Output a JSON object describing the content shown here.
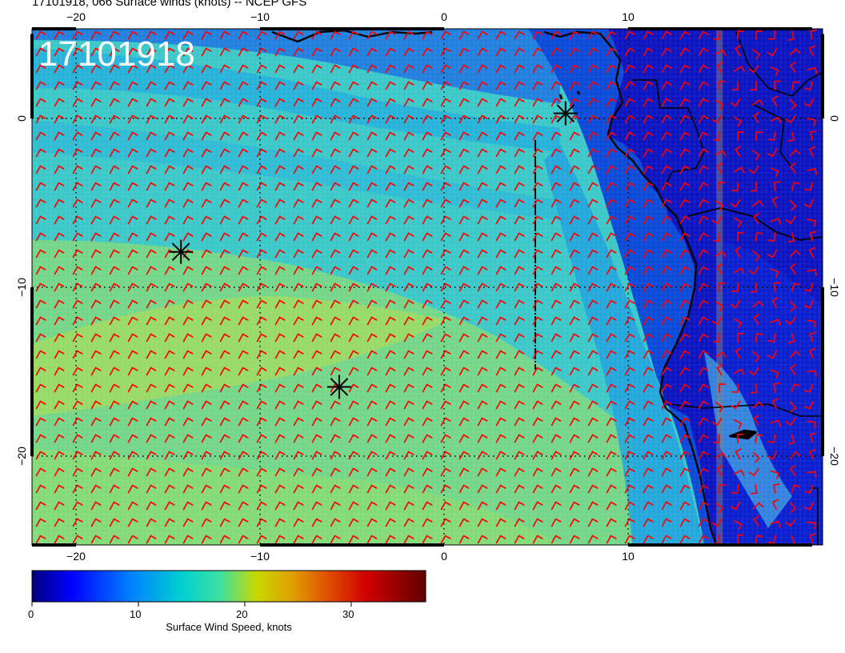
{
  "title": "17101918, 066 Surface winds (knots) -- NCEP GFS",
  "map": {
    "overlay_label": "17101918",
    "lon_range": [
      -22.5,
      20
    ],
    "lat_range": [
      -25,
      5
    ],
    "lon_ticks_top": [
      {
        "value": -20,
        "label": "−20"
      },
      {
        "value": -10,
        "label": "−10"
      },
      {
        "value": 0,
        "label": "0"
      },
      {
        "value": 10,
        "label": "10"
      }
    ],
    "lon_ticks_bottom": [
      {
        "value": -20,
        "label": "−20"
      },
      {
        "value": -10,
        "label": "−10"
      },
      {
        "value": 0,
        "label": "0"
      },
      {
        "value": 10,
        "label": "10"
      }
    ],
    "lat_ticks": [
      {
        "value": 0,
        "label": "0"
      },
      {
        "value": -10,
        "label": "−10"
      },
      {
        "value": -20,
        "label": "−20"
      }
    ],
    "gridlines": {
      "lon": [
        -20,
        -10,
        0,
        10
      ],
      "lat": [
        0,
        -10,
        -20
      ]
    },
    "markers": [
      {
        "name": "marker-1",
        "lon": -14.3,
        "lat": -7.9
      },
      {
        "name": "marker-2",
        "lon": -5.7,
        "lat": -15.9
      },
      {
        "name": "marker-3",
        "lon": 6.6,
        "lat": 0.3
      }
    ],
    "barb_color": "#ff0000"
  },
  "colorbar": {
    "label": "Surface Wind Speed, knots",
    "ticks": [
      {
        "value": 0,
        "label": "0"
      },
      {
        "value": 10,
        "label": "10"
      },
      {
        "value": 20,
        "label": "20"
      },
      {
        "value": 30,
        "label": "30"
      }
    ],
    "range": [
      0,
      37
    ],
    "colors": [
      "#00007f",
      "#0000ff",
      "#0080ff",
      "#00d0d0",
      "#40e0a0",
      "#a0e040",
      "#d0d000",
      "#e08000",
      "#ff0000",
      "#b00000",
      "#600000"
    ]
  }
}
